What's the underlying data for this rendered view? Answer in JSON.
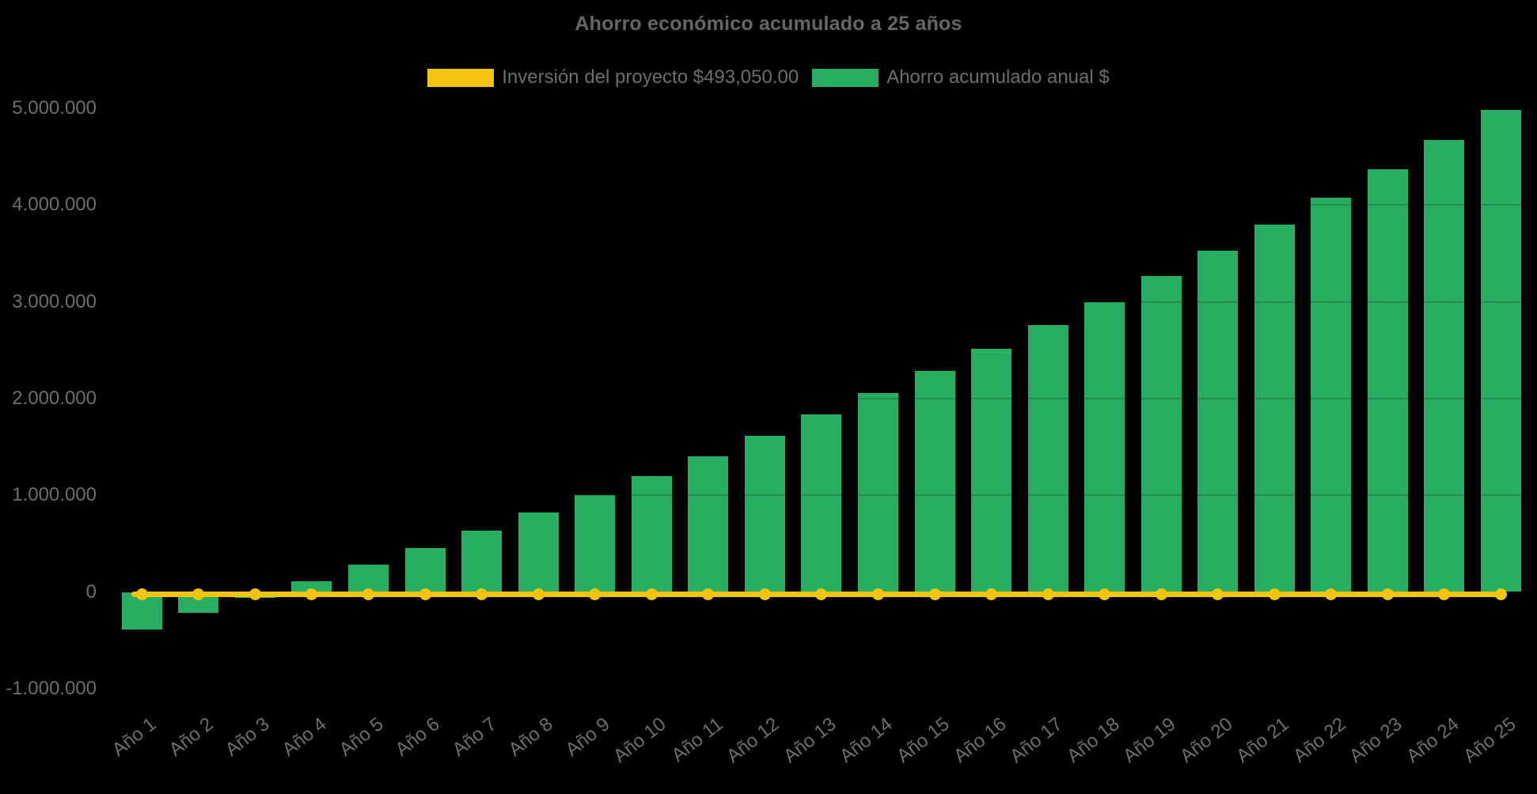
{
  "title": "Ahorro económico acumulado a 25 años",
  "legend": [
    {
      "label": "Inversión del proyecto $493,050.00",
      "color": "#F1C40F"
    },
    {
      "label": "Ahorro acumulado anual $",
      "color": "#27AE60"
    }
  ],
  "colors": {
    "background": "#000000",
    "bar_green": "#27AE60",
    "line_yellow": "#F1C40F",
    "text_gray": "#6E6E6E",
    "title_gray": "#666666"
  },
  "chart_data": {
    "type": "bar",
    "title": "Ahorro económico acumulado a 25 años",
    "categories": [
      "Año 1",
      "Año 2",
      "Año 3",
      "Año 4",
      "Año 5",
      "Año 6",
      "Año 7",
      "Año 8",
      "Año 9",
      "Año 10",
      "Año 11",
      "Año 12",
      "Año 13",
      "Año 14",
      "Año 15",
      "Año 16",
      "Año 17",
      "Año 18",
      "Año 19",
      "Año 20",
      "Año 21",
      "Año 22",
      "Año 23",
      "Año 24",
      "Año 25"
    ],
    "series": [
      {
        "name": "Ahorro acumulado anual $",
        "type": "bar",
        "color": "#27AE60",
        "values": [
          -385000,
          -220000,
          -60000,
          110000,
          285000,
          450000,
          630000,
          820000,
          1005000,
          1200000,
          1405000,
          1615000,
          1835000,
          2055000,
          2285000,
          2515000,
          2760000,
          3000000,
          3270000,
          3530000,
          3800000,
          4080000,
          4370000,
          4670000,
          4980000
        ]
      },
      {
        "name": "Inversión del proyecto $493,050.00",
        "type": "line",
        "color": "#F1C40F",
        "constant_value": 0,
        "note": "horizontal reference line at the zero/break-even level with a round marker at every year"
      }
    ],
    "y_axis": {
      "tick_labels": [
        "5.000.000",
        "4.000.000",
        "3.000.000",
        "2.000.000",
        "1.000.000",
        "0",
        "-1.000.000"
      ],
      "tick_values": [
        5000000,
        4000000,
        3000000,
        2000000,
        1000000,
        0,
        -1000000
      ],
      "range": [
        -1080000,
        5230000
      ]
    },
    "x_axis": {
      "label_rotation_deg": -38
    },
    "legend_position": "top",
    "grid": "faint dark horizontal gridlines visible only where they cross the bars",
    "background": "#000000"
  }
}
